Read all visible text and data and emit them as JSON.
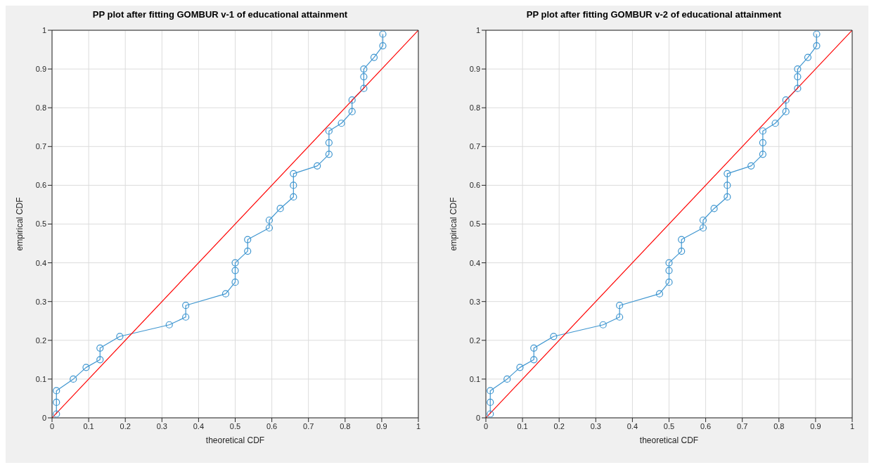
{
  "chart_data": [
    {
      "type": "line",
      "title": "PP plot after fitting GOMBUR v-1 of educational attainment",
      "xlabel": "theoretical CDF",
      "ylabel": "empirical CDF",
      "xlim": [
        0,
        1
      ],
      "ylim": [
        0,
        1
      ],
      "xticks": [
        0,
        0.1,
        0.2,
        0.3,
        0.4,
        0.5,
        0.6,
        0.7,
        0.8,
        0.9,
        1
      ],
      "yticks": [
        0,
        0.1,
        0.2,
        0.3,
        0.4,
        0.5,
        0.6,
        0.7,
        0.8,
        0.9,
        1
      ],
      "grid": true,
      "series": [
        {
          "marker": "circle",
          "color": "#3f96d0",
          "x": [
            0.012,
            0.012,
            0.012,
            0.058,
            0.093,
            0.131,
            0.131,
            0.185,
            0.32,
            0.365,
            0.365,
            0.474,
            0.5,
            0.5,
            0.5,
            0.534,
            0.534,
            0.593,
            0.593,
            0.623,
            0.659,
            0.659,
            0.659,
            0.724,
            0.756,
            0.756,
            0.756,
            0.79,
            0.819,
            0.819,
            0.851,
            0.851,
            0.851,
            0.879,
            0.903,
            0.903
          ],
          "values": [
            0.01,
            0.04,
            0.07,
            0.1,
            0.13,
            0.15,
            0.18,
            0.21,
            0.24,
            0.26,
            0.29,
            0.32,
            0.35,
            0.38,
            0.4,
            0.43,
            0.46,
            0.49,
            0.51,
            0.54,
            0.57,
            0.6,
            0.63,
            0.65,
            0.68,
            0.71,
            0.74,
            0.76,
            0.79,
            0.82,
            0.85,
            0.88,
            0.9,
            0.93,
            0.96,
            0.99
          ]
        },
        {
          "marker": "none",
          "color": "#ff0000",
          "x": [
            0,
            1
          ],
          "values": [
            0,
            1
          ]
        }
      ]
    },
    {
      "type": "line",
      "title": "PP plot after fitting GOMBUR v-2 of educational attainment",
      "xlabel": "theoretical CDF",
      "ylabel": "empirical CDF",
      "xlim": [
        0,
        1
      ],
      "ylim": [
        0,
        1
      ],
      "xticks": [
        0,
        0.1,
        0.2,
        0.3,
        0.4,
        0.5,
        0.6,
        0.7,
        0.8,
        0.9,
        1
      ],
      "yticks": [
        0,
        0.1,
        0.2,
        0.3,
        0.4,
        0.5,
        0.6,
        0.7,
        0.8,
        0.9,
        1
      ],
      "grid": true,
      "series": [
        {
          "marker": "circle",
          "color": "#3f96d0",
          "x": [
            0.012,
            0.012,
            0.012,
            0.058,
            0.093,
            0.131,
            0.131,
            0.185,
            0.32,
            0.365,
            0.365,
            0.474,
            0.5,
            0.5,
            0.5,
            0.534,
            0.534,
            0.593,
            0.593,
            0.623,
            0.659,
            0.659,
            0.659,
            0.724,
            0.756,
            0.756,
            0.756,
            0.79,
            0.819,
            0.819,
            0.851,
            0.851,
            0.851,
            0.879,
            0.903,
            0.903
          ],
          "values": [
            0.01,
            0.04,
            0.07,
            0.1,
            0.13,
            0.15,
            0.18,
            0.21,
            0.24,
            0.26,
            0.29,
            0.32,
            0.35,
            0.38,
            0.4,
            0.43,
            0.46,
            0.49,
            0.51,
            0.54,
            0.57,
            0.6,
            0.63,
            0.65,
            0.68,
            0.71,
            0.74,
            0.76,
            0.79,
            0.82,
            0.85,
            0.88,
            0.9,
            0.93,
            0.96,
            0.99
          ]
        },
        {
          "marker": "none",
          "color": "#ff0000",
          "x": [
            0,
            1
          ],
          "values": [
            0,
            1
          ]
        }
      ]
    }
  ]
}
